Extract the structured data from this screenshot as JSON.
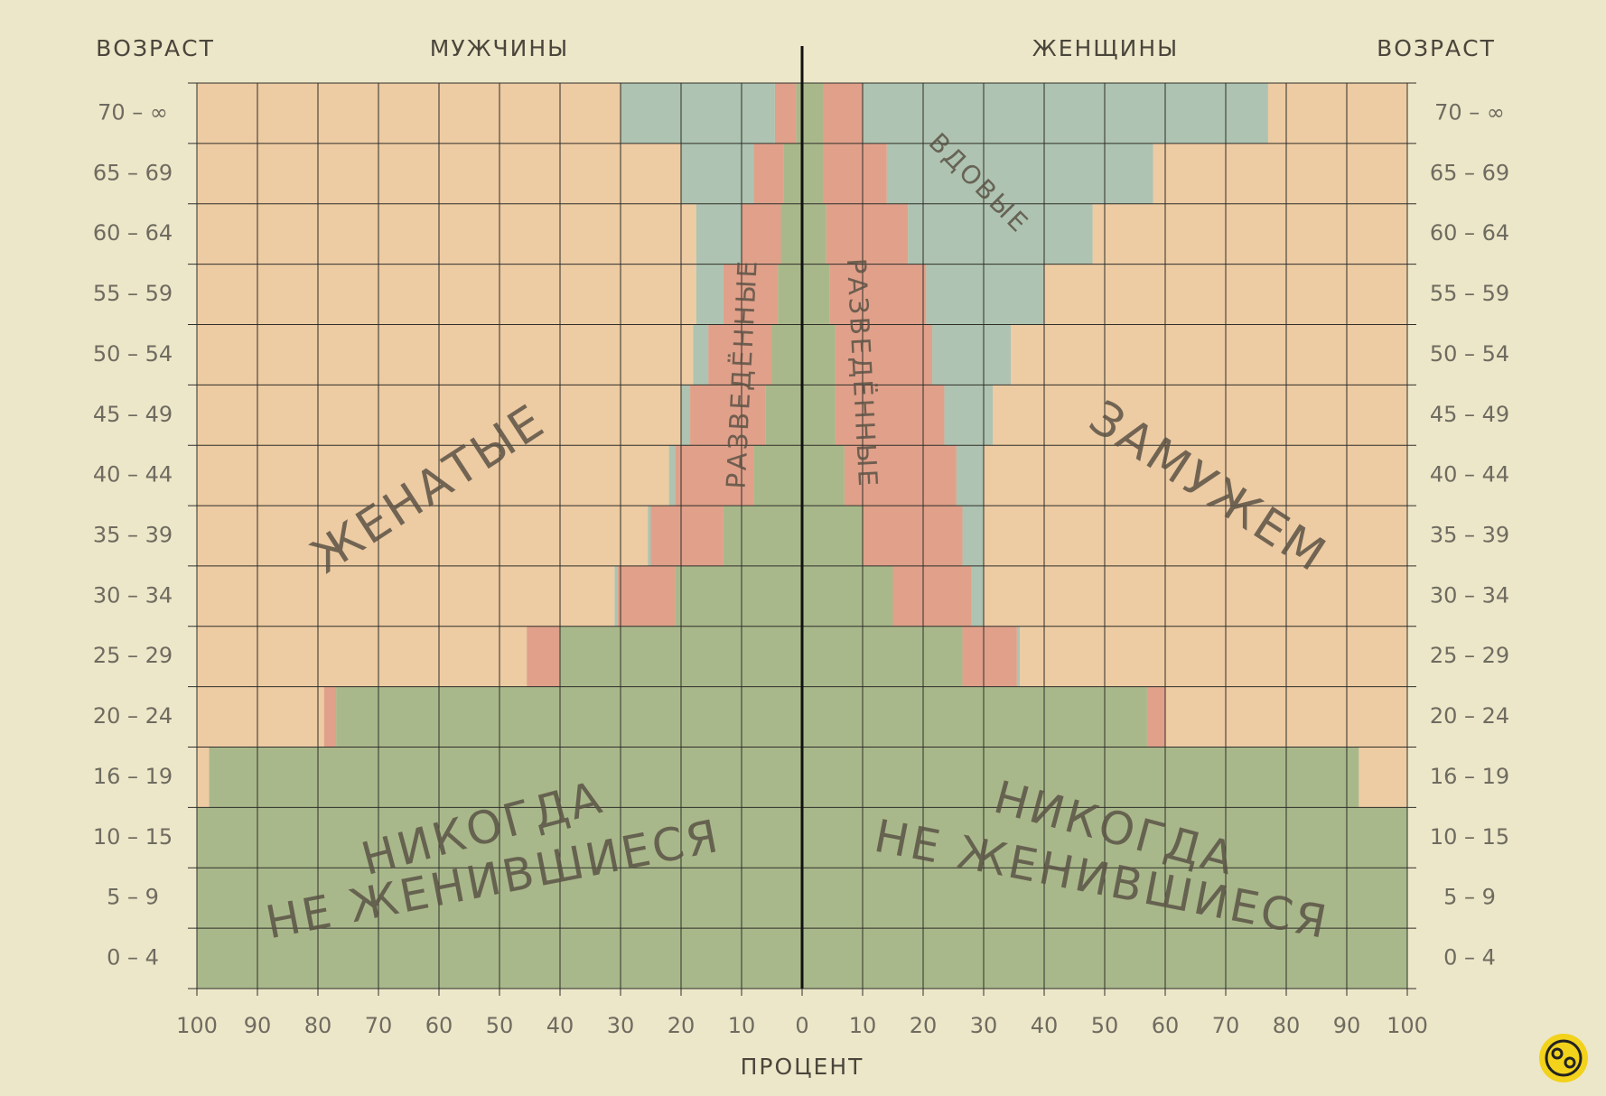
{
  "chart_data": {
    "type": "pyramid",
    "y_label": "ВОЗРАСТ",
    "x_label": "ПРОЦЕНТ",
    "categories": [
      "70 – ∞",
      "65 – 69",
      "60 – 64",
      "55 – 59",
      "50 – 54",
      "45 – 49",
      "40 – 44",
      "35 – 39",
      "30 – 34",
      "25 – 29",
      "20 – 24",
      "16 – 19",
      "10 – 15",
      "5 – 9",
      "0 – 4"
    ],
    "xlim": [
      0,
      100
    ],
    "xticks": [
      0,
      10,
      20,
      30,
      40,
      50,
      60,
      70,
      80,
      90,
      100
    ],
    "grid": true,
    "left": {
      "title": "МУЖЧИНЫ",
      "series": [
        {
          "color": "#a9b88a",
          "values": [
            1,
            3,
            3.5,
            4,
            5,
            6,
            8,
            13,
            21,
            40,
            77,
            98,
            100,
            100,
            100
          ]
        },
        {
          "color": "#e0a08a",
          "values": [
            3.5,
            5,
            6.5,
            9,
            10.5,
            12.5,
            13,
            12,
            9.5,
            5.5,
            2,
            0,
            0,
            0,
            0
          ]
        },
        {
          "color": "#aec3b1",
          "values": [
            25.5,
            12,
            7.5,
            4.5,
            2.5,
            1.5,
            1,
            0.5,
            0.5,
            0,
            0,
            0,
            0,
            0,
            0
          ]
        },
        {
          "color": "#edcba3",
          "values": [
            70,
            80,
            82.5,
            82.5,
            82,
            80,
            78,
            74.5,
            69,
            54.5,
            21,
            2,
            0,
            0,
            0
          ]
        }
      ]
    },
    "right": {
      "title": "ЖЕНЩИНЫ",
      "series": [
        {
          "color": "#a9b88a",
          "values": [
            3.5,
            3.5,
            4,
            4.5,
            5.5,
            5.5,
            7,
            10,
            15,
            26.5,
            57,
            92,
            100,
            100,
            100
          ]
        },
        {
          "color": "#e0a08a",
          "values": [
            6.5,
            10.5,
            13.5,
            16,
            16,
            18,
            18.5,
            16.5,
            13,
            9,
            3,
            0,
            0,
            0,
            0
          ]
        },
        {
          "color": "#aec3b1",
          "values": [
            67,
            44,
            30.5,
            19.5,
            13,
            8,
            4.5,
            3.5,
            2,
            0.5,
            0,
            0,
            0,
            0,
            0
          ]
        },
        {
          "color": "#edcba3",
          "values": [
            23,
            42,
            52,
            60,
            65.5,
            68.5,
            70,
            70,
            70,
            64,
            40,
            8,
            0,
            0,
            0
          ]
        }
      ]
    },
    "annotations": [
      "ЖЕНАТЫЕ",
      "ЗАМУЖЕМ",
      "РАЗВЕДЁННЫЕ",
      "ВДОВЫЕ",
      "НИКОГДА",
      "НЕ ЖЕНИВШИЕСЯ"
    ]
  }
}
